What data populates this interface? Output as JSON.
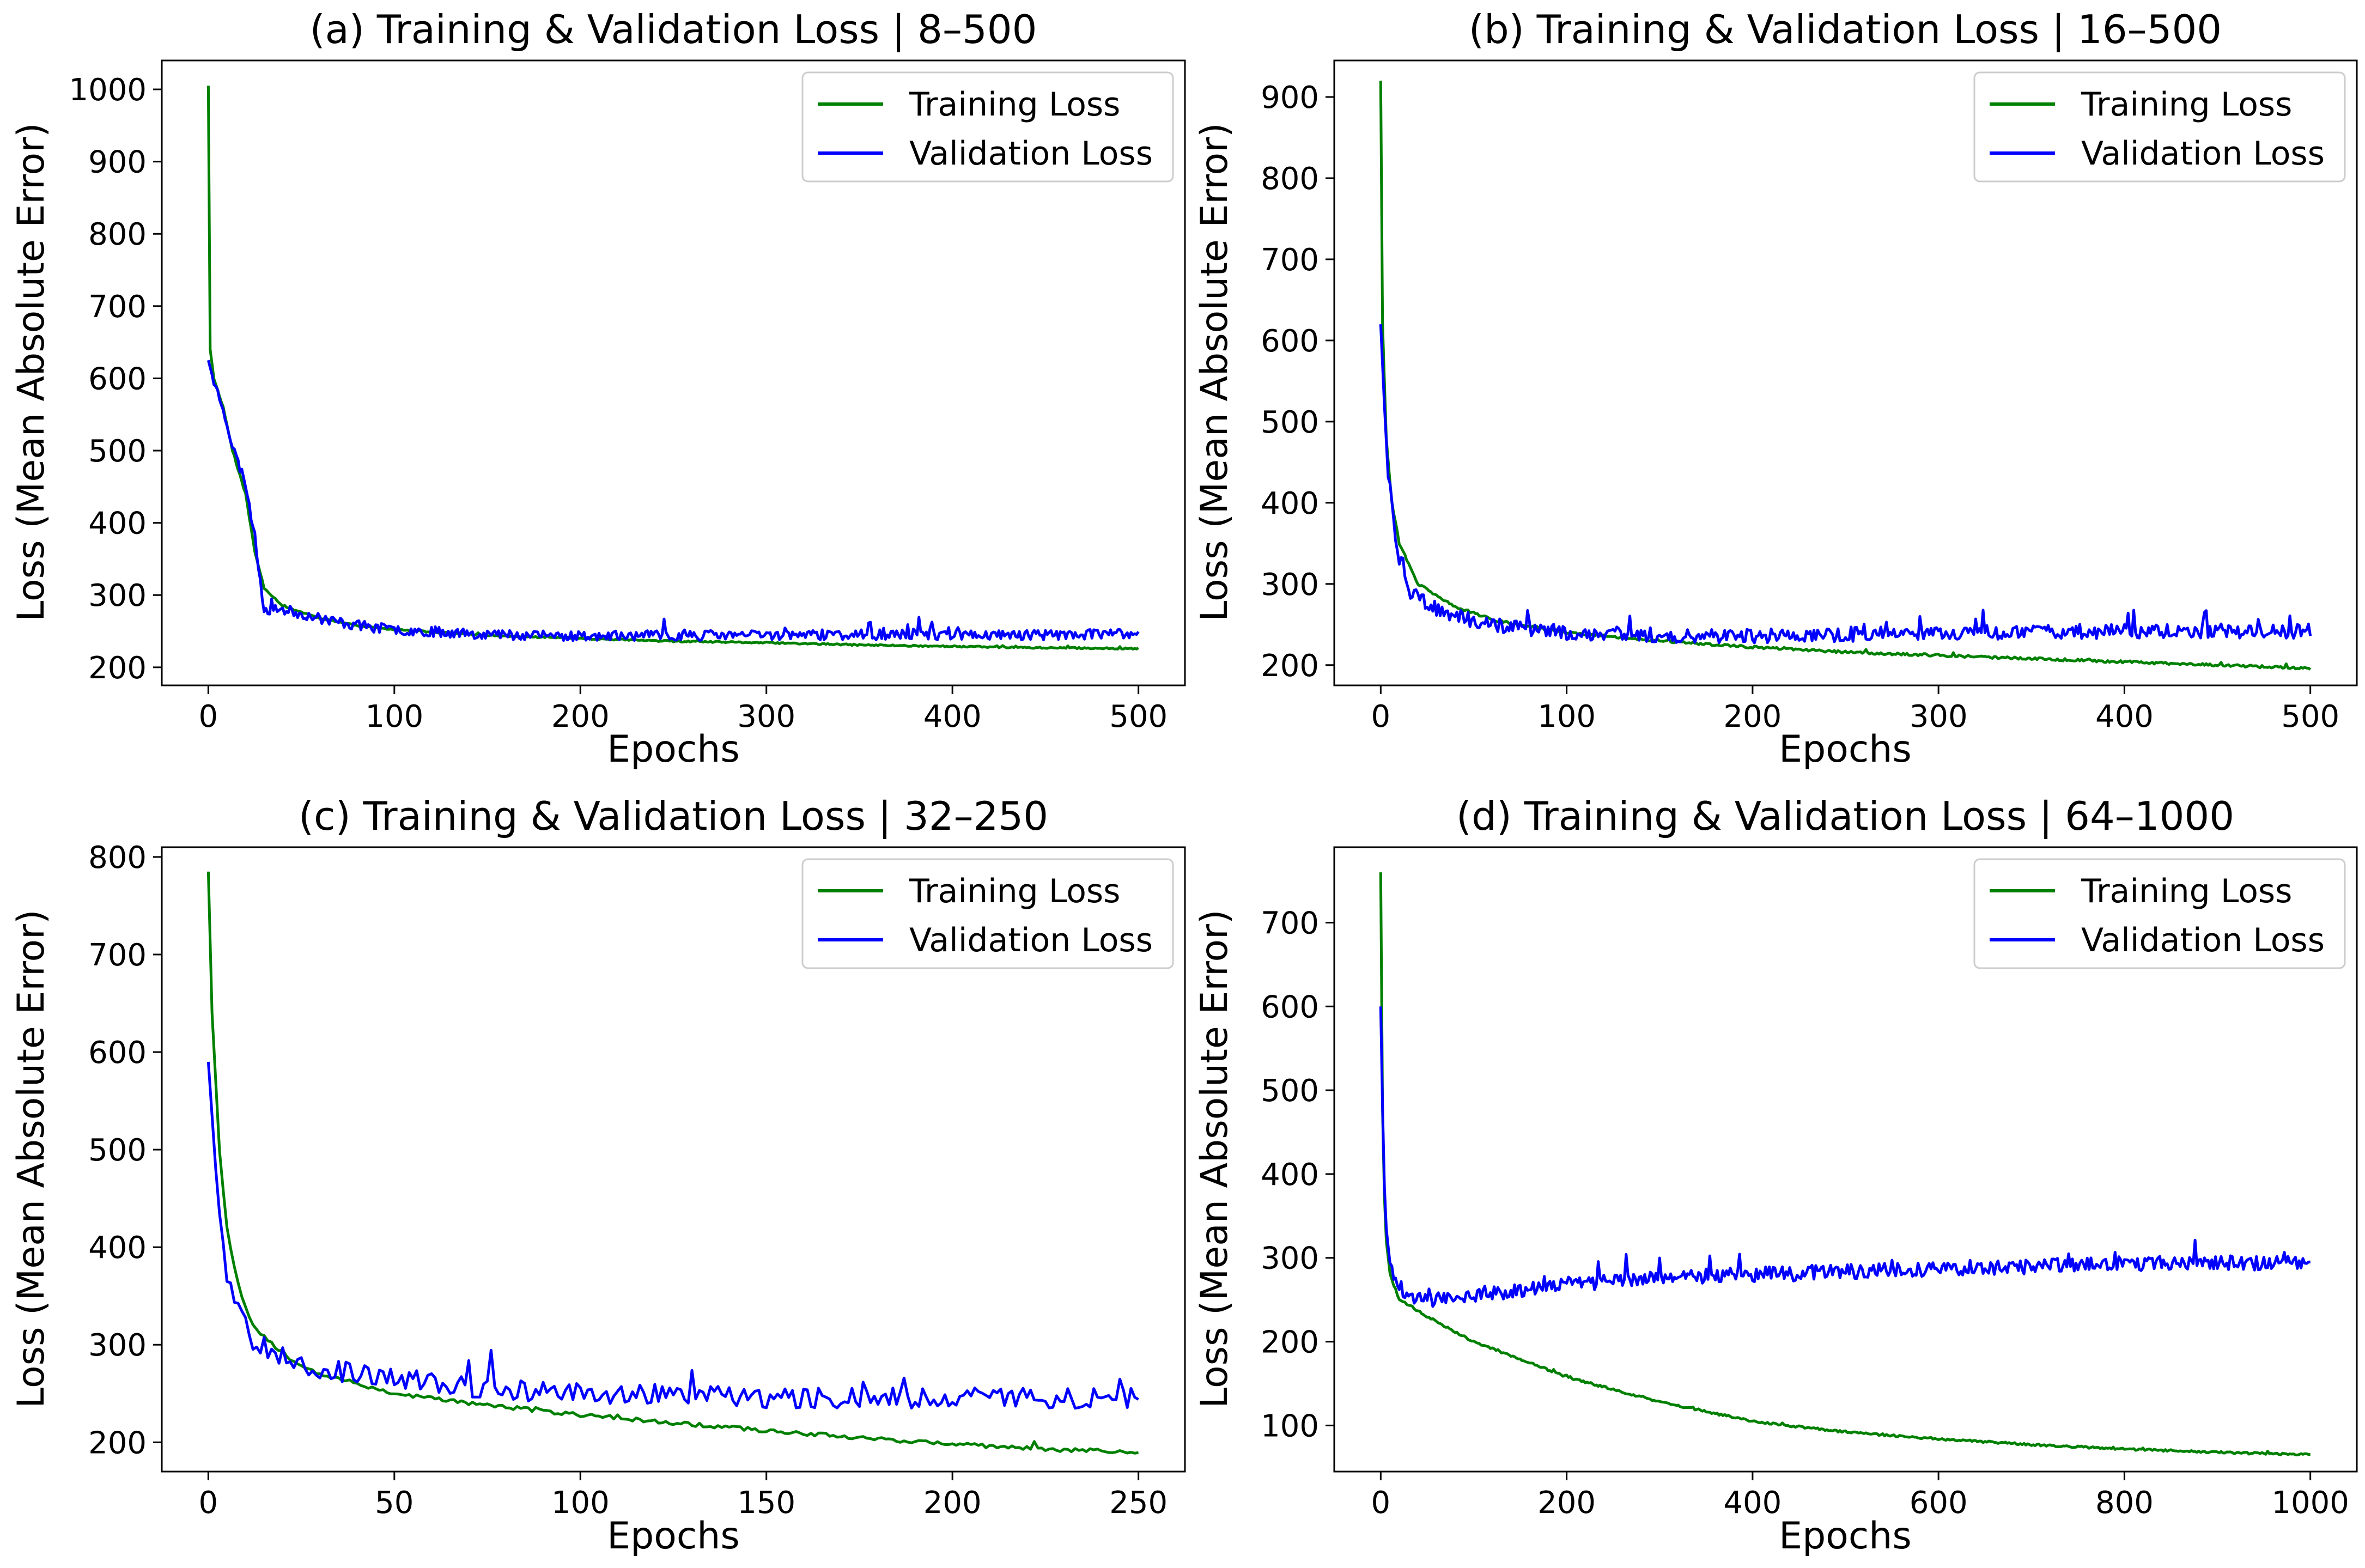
{
  "chart_data": [
    {
      "type": "line",
      "title": "(a) Training & Validation Loss | 8–500",
      "xlabel": "Epochs",
      "ylabel": "Loss (Mean Absolute Error)",
      "xlim": [
        -25,
        525
      ],
      "ylim": [
        175,
        1040
      ],
      "xticks": [
        0,
        100,
        200,
        300,
        400,
        500
      ],
      "yticks": [
        200,
        300,
        400,
        500,
        600,
        700,
        800,
        900,
        1000
      ],
      "legend": "top-right",
      "series": [
        {
          "name": "Training Loss",
          "color": "#008000",
          "points": [
            [
              0,
              1005
            ],
            [
              1,
              640
            ],
            [
              3,
              600
            ],
            [
              8,
              560
            ],
            [
              13,
              500
            ],
            [
              20,
              440
            ],
            [
              25,
              360
            ],
            [
              30,
              310
            ],
            [
              40,
              285
            ],
            [
              60,
              268
            ],
            [
              80,
              258
            ],
            [
              100,
              252
            ],
            [
              150,
              244
            ],
            [
              200,
              240
            ],
            [
              250,
              236
            ],
            [
              300,
              234
            ],
            [
              350,
              231
            ],
            [
              400,
              229
            ],
            [
              450,
              227
            ],
            [
              500,
              226
            ]
          ],
          "noise": 1,
          "seed": 11
        },
        {
          "name": "Validation Loss",
          "color": "#0000ff",
          "points": [
            [
              0,
              625
            ],
            [
              3,
              595
            ],
            [
              8,
              560
            ],
            [
              13,
              505
            ],
            [
              20,
              455
            ],
            [
              25,
              380
            ],
            [
              30,
              280
            ],
            [
              40,
              280
            ],
            [
              60,
              268
            ],
            [
              80,
              258
            ],
            [
              100,
              252
            ],
            [
              150,
              246
            ],
            [
              200,
              243
            ],
            [
              250,
              244
            ],
            [
              300,
              245
            ],
            [
              350,
              245
            ],
            [
              400,
              245
            ],
            [
              450,
              245
            ],
            [
              500,
              246
            ]
          ],
          "noise": 7,
          "seed": 23
        }
      ]
    },
    {
      "type": "line",
      "title": "(b) Training & Validation Loss | 16–500",
      "xlabel": "Epochs",
      "ylabel": "Loss (Mean Absolute Error)",
      "xlim": [
        -25,
        525
      ],
      "ylim": [
        175,
        945
      ],
      "xticks": [
        0,
        100,
        200,
        300,
        400,
        500
      ],
      "yticks": [
        200,
        300,
        400,
        500,
        600,
        700,
        800,
        900
      ],
      "legend": "top-right",
      "series": [
        {
          "name": "Training Loss",
          "color": "#008000",
          "points": [
            [
              0,
              920
            ],
            [
              1,
              620
            ],
            [
              3,
              480
            ],
            [
              6,
              400
            ],
            [
              10,
              350
            ],
            [
              20,
              300
            ],
            [
              40,
              272
            ],
            [
              60,
              256
            ],
            [
              100,
              240
            ],
            [
              150,
              230
            ],
            [
              200,
              222
            ],
            [
              250,
              216
            ],
            [
              300,
              212
            ],
            [
              350,
              208
            ],
            [
              400,
              204
            ],
            [
              450,
              200
            ],
            [
              500,
              196
            ]
          ],
          "noise": 1.5,
          "seed": 31
        },
        {
          "name": "Validation Loss",
          "color": "#0000ff",
          "points": [
            [
              0,
              620
            ],
            [
              2,
              520
            ],
            [
              4,
              440
            ],
            [
              7,
              380
            ],
            [
              10,
              320
            ],
            [
              15,
              290
            ],
            [
              25,
              275
            ],
            [
              40,
              260
            ],
            [
              60,
              250
            ],
            [
              100,
              240
            ],
            [
              150,
              237
            ],
            [
              200,
              236
            ],
            [
              250,
              238
            ],
            [
              300,
              240
            ],
            [
              350,
              241
            ],
            [
              400,
              242
            ],
            [
              450,
              242
            ],
            [
              500,
              242
            ]
          ],
          "noise": 9,
          "seed": 47
        }
      ]
    },
    {
      "type": "line",
      "title": "(c) Training & Validation Loss | 32–250",
      "xlabel": "Epochs",
      "ylabel": "Loss (Mean Absolute Error)",
      "xlim": [
        -12.5,
        262.5
      ],
      "ylim": [
        170,
        810
      ],
      "xticks": [
        0,
        50,
        100,
        150,
        200,
        250
      ],
      "yticks": [
        200,
        300,
        400,
        500,
        600,
        700,
        800
      ],
      "legend": "top-right",
      "series": [
        {
          "name": "Training Loss",
          "color": "#008000",
          "points": [
            [
              0,
              785
            ],
            [
              1,
              640
            ],
            [
              3,
              500
            ],
            [
              5,
              420
            ],
            [
              8,
              360
            ],
            [
              12,
              320
            ],
            [
              20,
              290
            ],
            [
              30,
              270
            ],
            [
              50,
              250
            ],
            [
              75,
              238
            ],
            [
              100,
              228
            ],
            [
              125,
              220
            ],
            [
              150,
              212
            ],
            [
              175,
              205
            ],
            [
              200,
              198
            ],
            [
              225,
              193
            ],
            [
              250,
              190
            ]
          ],
          "noise": 2,
          "seed": 53
        },
        {
          "name": "Validation Loss",
          "color": "#0000ff",
          "points": [
            [
              0,
              590
            ],
            [
              2,
              480
            ],
            [
              4,
              400
            ],
            [
              6,
              350
            ],
            [
              8,
              340
            ],
            [
              12,
              305
            ],
            [
              20,
              290
            ],
            [
              30,
              275
            ],
            [
              50,
              265
            ],
            [
              75,
              255
            ],
            [
              100,
              250
            ],
            [
              125,
              248
            ],
            [
              150,
              246
            ],
            [
              175,
              246
            ],
            [
              200,
              246
            ],
            [
              225,
              246
            ],
            [
              250,
              245
            ]
          ],
          "noise": 11,
          "seed": 67
        }
      ]
    },
    {
      "type": "line",
      "title": "(d) Training & Validation Loss | 64–1000",
      "xlabel": "Epochs",
      "ylabel": "Loss (Mean Absolute Error)",
      "xlim": [
        -50,
        1050
      ],
      "ylim": [
        45,
        790
      ],
      "xticks": [
        0,
        200,
        400,
        600,
        800,
        1000
      ],
      "yticks": [
        100,
        200,
        300,
        400,
        500,
        600,
        700
      ],
      "legend": "top-right",
      "series": [
        {
          "name": "Training Loss",
          "color": "#008000",
          "points": [
            [
              0,
              760
            ],
            [
              1,
              550
            ],
            [
              3,
              400
            ],
            [
              6,
              320
            ],
            [
              10,
              280
            ],
            [
              20,
              250
            ],
            [
              50,
              230
            ],
            [
              100,
              200
            ],
            [
              200,
              158
            ],
            [
              300,
              128
            ],
            [
              400,
              105
            ],
            [
              500,
              92
            ],
            [
              600,
              84
            ],
            [
              700,
              77
            ],
            [
              800,
              72
            ],
            [
              900,
              68
            ],
            [
              1000,
              65
            ]
          ],
          "noise": 1.2,
          "seed": 71
        },
        {
          "name": "Validation Loss",
          "color": "#0000ff",
          "points": [
            [
              0,
              600
            ],
            [
              3,
              420
            ],
            [
              6,
              330
            ],
            [
              10,
              290
            ],
            [
              20,
              265
            ],
            [
              40,
              250
            ],
            [
              80,
              252
            ],
            [
              150,
              262
            ],
            [
              200,
              268
            ],
            [
              300,
              277
            ],
            [
              400,
              280
            ],
            [
              500,
              283
            ],
            [
              600,
              287
            ],
            [
              700,
              290
            ],
            [
              800,
              293
            ],
            [
              900,
              295
            ],
            [
              1000,
              293
            ]
          ],
          "noise": 9,
          "seed": 89
        }
      ]
    }
  ]
}
